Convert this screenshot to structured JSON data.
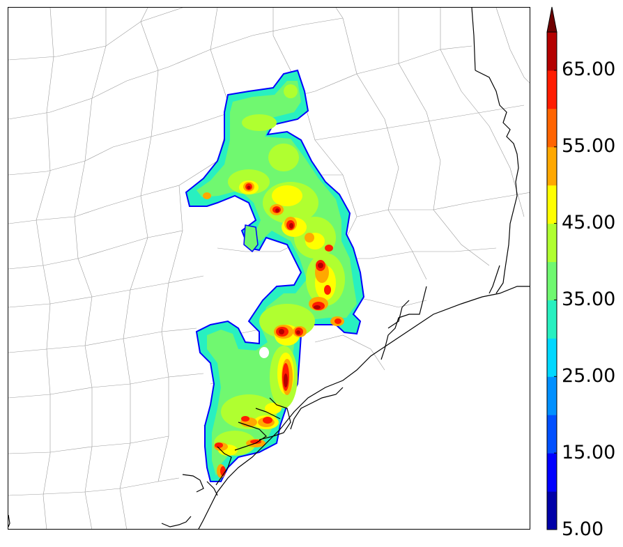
{
  "map": {
    "region": "Southeast Texas Gulf Coast",
    "county_line_color": "#9a9a9a",
    "coast_color": "#000000"
  },
  "colorbar": {
    "extend": "max",
    "levels": [
      5,
      10,
      15,
      20,
      25,
      30,
      35,
      40,
      45,
      50,
      55,
      60,
      65,
      70
    ],
    "colors": [
      "#0000a8",
      "#0000ff",
      "#0050ff",
      "#0090ff",
      "#00d8ff",
      "#28f0c0",
      "#70f870",
      "#b0ff30",
      "#ffff00",
      "#ffa800",
      "#ff6400",
      "#ff1c00",
      "#b40000"
    ],
    "extend_color": "#6e0000",
    "tick_labels": [
      "5.00",
      "15.00",
      "25.00",
      "35.00",
      "45.00",
      "55.00",
      "65.00"
    ]
  }
}
